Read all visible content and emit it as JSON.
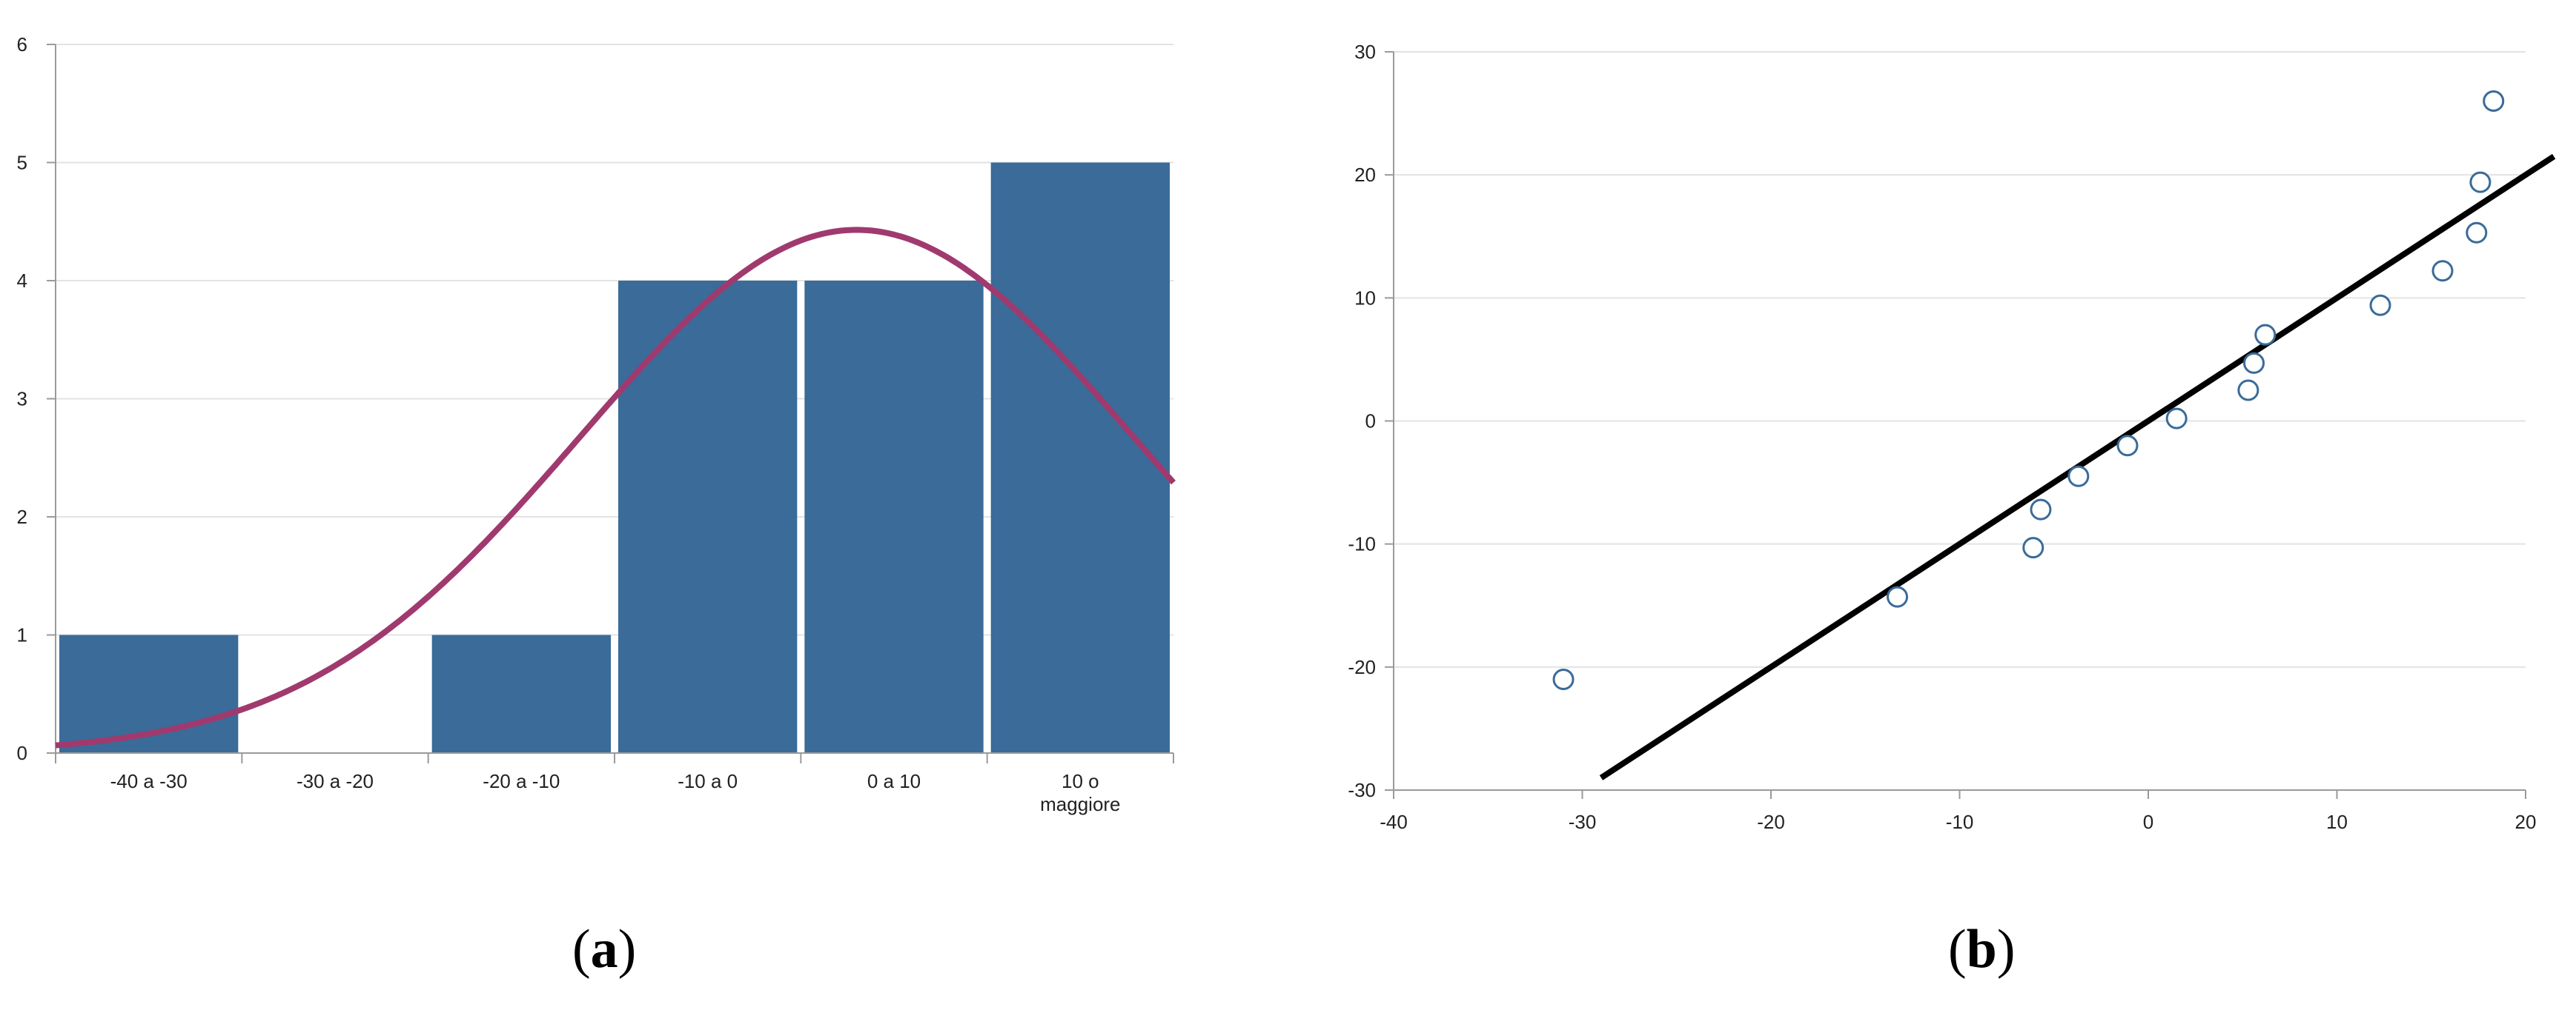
{
  "chart_data": [
    {
      "panel": "a",
      "type": "bar",
      "categories": [
        [
          "-40 a -30"
        ],
        [
          "-30 a -20"
        ],
        [
          "-20 a -10"
        ],
        [
          "-10 a 0"
        ],
        [
          "0 a 10"
        ],
        [
          "10 o",
          "maggiore"
        ]
      ],
      "values": [
        1,
        0,
        1,
        4,
        4,
        5
      ],
      "ylim": [
        0,
        6
      ],
      "yticks": [
        0,
        1,
        2,
        3,
        4,
        5,
        6
      ],
      "grid": true,
      "fit_curve": {
        "type": "normal",
        "peak": 4.43,
        "peak_position": 4.3,
        "sd_bins": 1.48
      },
      "colors": {
        "bar": "#3a6b99",
        "curve": "#a03a6e",
        "grid": "#e3e3e3",
        "axis": "#9a9a9a"
      }
    },
    {
      "panel": "b",
      "type": "scatter",
      "xlim": [
        -40,
        20
      ],
      "ylim": [
        -30,
        30
      ],
      "xticks": [
        -40,
        -30,
        -20,
        -10,
        0,
        10,
        20
      ],
      "yticks": [
        -30,
        -20,
        -10,
        0,
        10,
        20,
        30
      ],
      "grid": true,
      "points": [
        {
          "x": -31,
          "y": -21
        },
        {
          "x": -13.3,
          "y": -14.3
        },
        {
          "x": -6.1,
          "y": -10.3
        },
        {
          "x": -5.7,
          "y": -7.2
        },
        {
          "x": -3.7,
          "y": -4.5
        },
        {
          "x": -1.1,
          "y": -2
        },
        {
          "x": 1.5,
          "y": 0.2
        },
        {
          "x": 5.3,
          "y": 2.5
        },
        {
          "x": 5.6,
          "y": 4.7
        },
        {
          "x": 6.2,
          "y": 7
        },
        {
          "x": 12.3,
          "y": 9.4
        },
        {
          "x": 15.6,
          "y": 12.2
        },
        {
          "x": 17.4,
          "y": 15.3
        },
        {
          "x": 17.6,
          "y": 19.4
        },
        {
          "x": 18.3,
          "y": 26
        }
      ],
      "line": [
        {
          "x": -29,
          "y": -29
        },
        {
          "x": 21.5,
          "y": 21.5
        }
      ],
      "colors": {
        "marker_edge": "#3a6b99",
        "marker_fill": "#ffffff",
        "line": "#000000",
        "grid": "#e3e3e3",
        "axis": "#9a9a9a"
      }
    }
  ],
  "labels": {
    "a": "a",
    "b": "b"
  }
}
